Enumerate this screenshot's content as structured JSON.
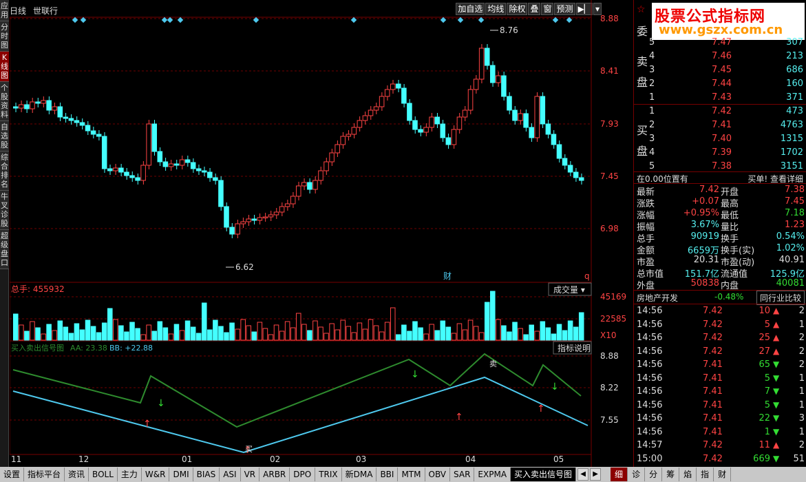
{
  "left_nav": [
    "应用",
    "分时图",
    "K线图",
    "个股资料",
    "自选股",
    "综合排名",
    "牛叉诊股",
    "超级盘口"
  ],
  "left_nav_active": 2,
  "header": {
    "period": "日线",
    "stock_name": "世联行",
    "buttons": [
      "加自选",
      "均线",
      "除权",
      "叠",
      "窗",
      "预测"
    ],
    "end_icon": "play-icon"
  },
  "price_chart": {
    "y_ticks": [
      "8.88",
      "8.41",
      "7.93",
      "7.45",
      "6.98"
    ],
    "high_label": "8.76",
    "low_label": "6.62",
    "markers": [
      "财",
      "q"
    ]
  },
  "volume_panel": {
    "title": "总手: 455932",
    "selector": "成交量",
    "y_ticks": [
      "45169",
      "22585"
    ],
    "unit": "X10"
  },
  "signal_panel": {
    "title": "买入卖出信号图",
    "aa": "AA: 23.38",
    "bb": "BB: +22.88",
    "help_button": "指标说明",
    "y_ticks": [
      "8.88",
      "8.22",
      "7.55"
    ],
    "buy_label": "买",
    "sell_label": "卖"
  },
  "x_axis": [
    "11",
    "12",
    "01",
    "02",
    "03",
    "04",
    "05"
  ],
  "right_panel": {
    "logo_title": "股票公式指标网",
    "logo_url": "www.gszx.com.cn",
    "sell_label": [
      "卖",
      "盘"
    ],
    "buy_label": [
      "买",
      "盘"
    ],
    "committee_label": "委",
    "asks": [
      {
        "lvl": "5",
        "px": "7.47",
        "vol": "307"
      },
      {
        "lvl": "4",
        "px": "7.46",
        "vol": "213"
      },
      {
        "lvl": "3",
        "px": "7.45",
        "vol": "686"
      },
      {
        "lvl": "2",
        "px": "7.44",
        "vol": "160"
      },
      {
        "lvl": "1",
        "px": "7.43",
        "vol": "371"
      }
    ],
    "bids": [
      {
        "lvl": "1",
        "px": "7.42",
        "vol": "473"
      },
      {
        "lvl": "2",
        "px": "7.41",
        "vol": "4763"
      },
      {
        "lvl": "3",
        "px": "7.40",
        "vol": "1315"
      },
      {
        "lvl": "4",
        "px": "7.39",
        "vol": "1702"
      },
      {
        "lvl": "5",
        "px": "7.38",
        "vol": "3151"
      }
    ],
    "position_text": "在0.00位置有",
    "detail_link": "买单! 查看详细",
    "quotes": [
      {
        "l": "最新",
        "v": "7.42",
        "vc": "#f44",
        "r": "开盘",
        "v2": "7.38",
        "v2c": "#f44"
      },
      {
        "l": "涨跌",
        "v": "+0.07",
        "vc": "#f44",
        "r": "最高",
        "v2": "7.45",
        "v2c": "#f44"
      },
      {
        "l": "涨幅",
        "v": "+0.95%",
        "vc": "#f44",
        "r": "最低",
        "v2": "7.18",
        "v2c": "#3d3"
      },
      {
        "l": "振幅",
        "v": "3.67%",
        "vc": "#5ee",
        "r": "量比",
        "v2": "1.23",
        "v2c": "#f44"
      },
      {
        "l": "总手",
        "v": "90919",
        "vc": "#5ee",
        "r": "换手",
        "v2": "0.54%",
        "v2c": "#5ee"
      },
      {
        "l": "金额",
        "v": "6659万",
        "vc": "#5ee",
        "r": "换手(实)",
        "v2": "1.02%",
        "v2c": "#5ee"
      },
      {
        "l": "市盈",
        "v": "20.31",
        "vc": "#ddd",
        "r": "市盈(动)",
        "v2": "40.91",
        "v2c": "#ddd"
      },
      {
        "l": "总市值",
        "v": "151.7亿",
        "vc": "#5ee",
        "r": "流通值",
        "v2": "125.9亿",
        "v2c": "#5ee"
      },
      {
        "l": "外盘",
        "v": "50838",
        "vc": "#f44",
        "r": "内盘",
        "v2": "40081",
        "v2c": "#3d3"
      }
    ],
    "sector": "房地产开发",
    "sector_change": "-0.48%",
    "compare_button": "同行业比较",
    "ticks": [
      {
        "t": "14:56",
        "p": "7.42",
        "v": "10",
        "d": "up",
        "n": "2"
      },
      {
        "t": "14:56",
        "p": "7.42",
        "v": "5",
        "d": "up",
        "n": "1"
      },
      {
        "t": "14:56",
        "p": "7.42",
        "v": "25",
        "d": "up",
        "n": "2"
      },
      {
        "t": "14:56",
        "p": "7.42",
        "v": "27",
        "d": "up",
        "n": "2"
      },
      {
        "t": "14:56",
        "p": "7.41",
        "v": "65",
        "d": "down",
        "n": "2"
      },
      {
        "t": "14:56",
        "p": "7.41",
        "v": "5",
        "d": "down",
        "n": "1"
      },
      {
        "t": "14:56",
        "p": "7.41",
        "v": "7",
        "d": "down",
        "n": "1"
      },
      {
        "t": "14:56",
        "p": "7.41",
        "v": "5",
        "d": "down",
        "n": "1"
      },
      {
        "t": "14:56",
        "p": "7.41",
        "v": "22",
        "d": "down",
        "n": "3"
      },
      {
        "t": "14:56",
        "p": "7.41",
        "v": "1",
        "d": "down",
        "n": "1"
      },
      {
        "t": "14:57",
        "p": "7.42",
        "v": "11",
        "d": "up",
        "n": "2"
      },
      {
        "t": "15:00",
        "p": "7.42",
        "v": "669",
        "d": "down",
        "n": "51"
      }
    ]
  },
  "bottom_tabs": [
    "设置",
    "指标平台",
    "资讯",
    "BOLL",
    "主力",
    "W&R",
    "DMI",
    "BIAS",
    "ASI",
    "VR",
    "ARBR",
    "DPO",
    "TRIX",
    "新DMA",
    "BBI",
    "MTM",
    "OBV",
    "SAR",
    "EXPMA",
    "买入卖出信号图"
  ],
  "bottom_tabs_active": 19,
  "right_tabs": [
    "细",
    "诊",
    "分",
    "筹",
    "焰",
    "指",
    "财"
  ],
  "right_tabs_active": 0,
  "colors": {
    "up": "#ff4444",
    "down": "#44ffff",
    "grid": "#700000",
    "aa": "#2e8b2e",
    "bb": "#4ec9ee"
  }
}
